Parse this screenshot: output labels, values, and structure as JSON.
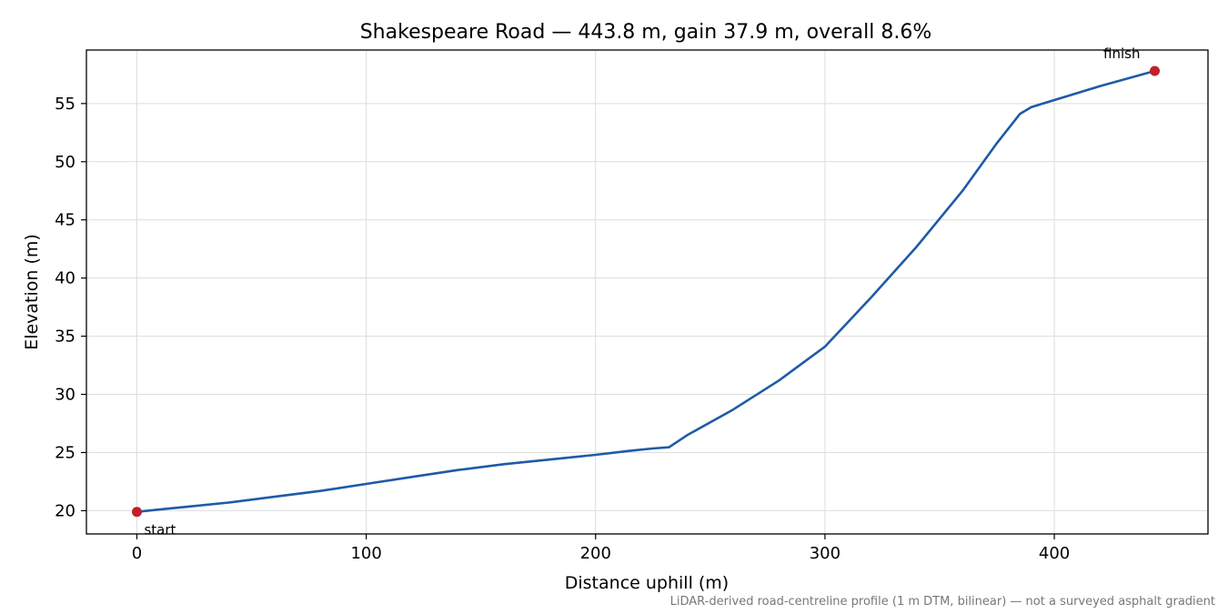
{
  "chart_data": {
    "type": "line",
    "title": "Shakespeare Road — 443.8 m, gain 37.9 m, overall 8.6%",
    "xlabel": "Distance uphill (m)",
    "ylabel": "Elevation (m)",
    "xlim": [
      -22,
      467
    ],
    "ylim": [
      18.0,
      59.6
    ],
    "xticks": [
      0,
      100,
      200,
      300,
      400
    ],
    "yticks": [
      20,
      25,
      30,
      35,
      40,
      45,
      50,
      55
    ],
    "grid": true,
    "series": [
      {
        "color": "#1f5aa8",
        "x": [
          0,
          10,
          20,
          40,
          60,
          80,
          100,
          120,
          140,
          160,
          180,
          200,
          215,
          225,
          232,
          240,
          260,
          280,
          300,
          320,
          340,
          360,
          375,
          385,
          390,
          400,
          420,
          443.8
        ],
        "y": [
          19.9,
          20.1,
          20.3,
          20.7,
          21.2,
          21.7,
          22.3,
          22.9,
          23.5,
          24.0,
          24.4,
          24.8,
          25.15,
          25.35,
          25.45,
          26.5,
          28.7,
          31.2,
          34.1,
          38.3,
          42.7,
          47.5,
          51.6,
          54.1,
          54.7,
          55.3,
          56.5,
          57.8
        ]
      }
    ],
    "markers": [
      {
        "label": "start",
        "x": 0,
        "y": 19.9,
        "color": "#c0202a"
      },
      {
        "label": "finish",
        "x": 443.8,
        "y": 57.8,
        "color": "#c0202a"
      }
    ],
    "footnote": "LiDAR-derived road-centreline profile (1 m DTM, bilinear) — not a surveyed asphalt gradient"
  }
}
